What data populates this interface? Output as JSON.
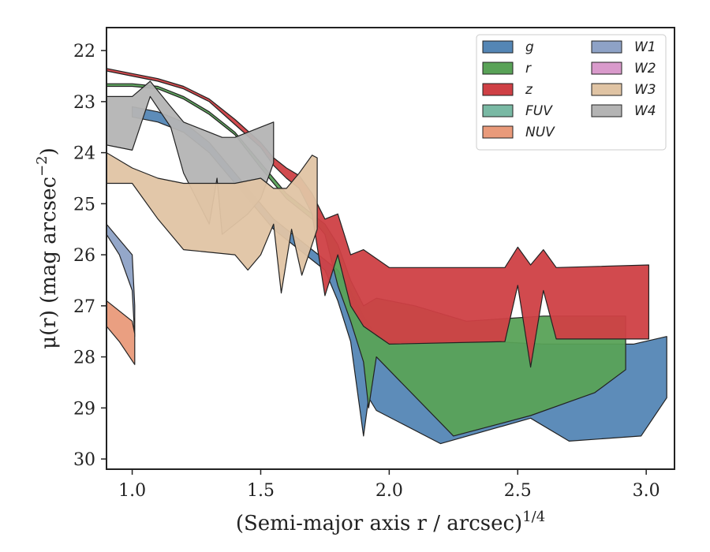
{
  "chart_data": {
    "type": "area",
    "xlabel": "(Semi-major axis r / arcsec)",
    "xlabel_superscript": "1/4",
    "ylabel": "μ(r) (mag arcsec",
    "ylabel_superscript": "−2",
    "ylabel_close": ")",
    "xlim": [
      0.9,
      3.11
    ],
    "ylim": [
      30.2,
      21.55
    ],
    "y_inverted": true,
    "xticks": [
      1.0,
      1.5,
      2.0,
      2.5,
      3.0
    ],
    "xtick_labels": [
      "1.0",
      "1.5",
      "2.0",
      "2.5",
      "3.0"
    ],
    "yticks": [
      22,
      23,
      24,
      25,
      26,
      27,
      28,
      29,
      30
    ],
    "ytick_labels": [
      "22",
      "23",
      "24",
      "25",
      "26",
      "27",
      "28",
      "29",
      "30"
    ],
    "grid": false,
    "legend_position": "top-right",
    "legend_columns": 2,
    "series": [
      {
        "name": "W2",
        "color": "#d99acb",
        "upper": [],
        "lower": []
      },
      {
        "name": "FUV",
        "color": "#79b9a4",
        "upper": [],
        "lower": []
      },
      {
        "name": "g",
        "color": "#5486b5",
        "upper": [
          [
            1.0,
            23.1
          ],
          [
            1.1,
            23.2
          ],
          [
            1.2,
            23.4
          ],
          [
            1.3,
            23.8
          ],
          [
            1.4,
            24.4
          ],
          [
            1.5,
            25.0
          ],
          [
            1.55,
            25.3
          ],
          [
            1.6,
            25.5
          ],
          [
            1.65,
            25.7
          ],
          [
            1.7,
            25.9
          ],
          [
            1.75,
            26.1
          ],
          [
            1.8,
            26.3
          ],
          [
            1.85,
            26.7
          ],
          [
            1.9,
            27.2
          ],
          [
            1.95,
            27.6
          ],
          [
            2.0,
            27.7
          ],
          [
            2.2,
            27.7
          ],
          [
            2.4,
            27.7
          ],
          [
            2.6,
            27.75
          ],
          [
            2.8,
            27.75
          ],
          [
            2.95,
            27.75
          ],
          [
            3.08,
            27.6
          ]
        ],
        "lower": [
          [
            1.0,
            23.3
          ],
          [
            1.1,
            23.4
          ],
          [
            1.2,
            23.6
          ],
          [
            1.3,
            24.0
          ],
          [
            1.4,
            24.6
          ],
          [
            1.5,
            25.2
          ],
          [
            1.55,
            25.5
          ],
          [
            1.6,
            25.7
          ],
          [
            1.65,
            25.9
          ],
          [
            1.7,
            26.1
          ],
          [
            1.75,
            26.3
          ],
          [
            1.8,
            26.9
          ],
          [
            1.85,
            27.7
          ],
          [
            1.9,
            29.55
          ],
          [
            1.92,
            28.8
          ],
          [
            1.95,
            29.05
          ],
          [
            2.2,
            29.7
          ],
          [
            2.55,
            29.2
          ],
          [
            2.7,
            29.65
          ],
          [
            2.98,
            29.55
          ],
          [
            3.08,
            28.8
          ]
        ]
      },
      {
        "name": "r",
        "color": "#59a257",
        "upper": [
          [
            0.9,
            22.65
          ],
          [
            1.0,
            22.65
          ],
          [
            1.1,
            22.7
          ],
          [
            1.2,
            22.9
          ],
          [
            1.3,
            23.2
          ],
          [
            1.4,
            23.6
          ],
          [
            1.5,
            24.2
          ],
          [
            1.55,
            24.5
          ],
          [
            1.6,
            24.8
          ],
          [
            1.65,
            25.0
          ],
          [
            1.7,
            25.2
          ],
          [
            1.75,
            25.4
          ],
          [
            1.8,
            25.8
          ],
          [
            1.85,
            26.5
          ],
          [
            1.9,
            27.0
          ],
          [
            1.95,
            26.85
          ],
          [
            2.1,
            27.0
          ],
          [
            2.3,
            27.3
          ],
          [
            2.6,
            27.2
          ],
          [
            2.8,
            27.2
          ],
          [
            2.92,
            27.2
          ]
        ],
        "lower": [
          [
            0.9,
            22.7
          ],
          [
            1.0,
            22.7
          ],
          [
            1.1,
            22.75
          ],
          [
            1.2,
            22.95
          ],
          [
            1.3,
            23.25
          ],
          [
            1.4,
            23.65
          ],
          [
            1.5,
            24.3
          ],
          [
            1.55,
            24.6
          ],
          [
            1.6,
            24.9
          ],
          [
            1.65,
            25.1
          ],
          [
            1.7,
            25.3
          ],
          [
            1.75,
            25.6
          ],
          [
            1.8,
            26.6
          ],
          [
            1.85,
            27.3
          ],
          [
            1.9,
            28.1
          ],
          [
            1.92,
            29.0
          ],
          [
            1.95,
            28.0
          ],
          [
            2.25,
            29.55
          ],
          [
            2.55,
            29.15
          ],
          [
            2.8,
            28.7
          ],
          [
            2.92,
            28.25
          ]
        ]
      },
      {
        "name": "z",
        "color": "#cf4045",
        "upper": [
          [
            0.9,
            22.35
          ],
          [
            1.0,
            22.45
          ],
          [
            1.1,
            22.55
          ],
          [
            1.2,
            22.7
          ],
          [
            1.3,
            22.95
          ],
          [
            1.4,
            23.35
          ],
          [
            1.5,
            23.8
          ],
          [
            1.55,
            24.1
          ],
          [
            1.6,
            24.3
          ],
          [
            1.65,
            24.45
          ],
          [
            1.7,
            24.8
          ],
          [
            1.75,
            25.3
          ],
          [
            1.8,
            25.2
          ],
          [
            1.85,
            26.0
          ],
          [
            1.9,
            25.9
          ],
          [
            2.0,
            26.25
          ],
          [
            2.45,
            26.25
          ],
          [
            2.5,
            25.85
          ],
          [
            2.55,
            26.2
          ],
          [
            2.6,
            25.9
          ],
          [
            2.65,
            26.25
          ],
          [
            3.01,
            26.2
          ]
        ],
        "lower": [
          [
            0.9,
            22.4
          ],
          [
            1.0,
            22.5
          ],
          [
            1.1,
            22.6
          ],
          [
            1.2,
            22.75
          ],
          [
            1.3,
            23.0
          ],
          [
            1.4,
            23.45
          ],
          [
            1.5,
            23.9
          ],
          [
            1.55,
            24.25
          ],
          [
            1.6,
            24.5
          ],
          [
            1.65,
            24.7
          ],
          [
            1.7,
            25.2
          ],
          [
            1.75,
            26.8
          ],
          [
            1.8,
            26.0
          ],
          [
            1.85,
            27.0
          ],
          [
            1.9,
            27.4
          ],
          [
            2.0,
            27.75
          ],
          [
            2.45,
            27.7
          ],
          [
            2.5,
            26.6
          ],
          [
            2.55,
            28.2
          ],
          [
            2.6,
            26.7
          ],
          [
            2.65,
            27.65
          ],
          [
            3.01,
            27.65
          ]
        ]
      },
      {
        "name": "W4",
        "color": "#b4b4b4",
        "upper": [
          [
            0.9,
            22.9
          ],
          [
            1.0,
            22.9
          ],
          [
            1.07,
            22.6
          ],
          [
            1.15,
            23.1
          ],
          [
            1.2,
            23.4
          ],
          [
            1.3,
            23.6
          ],
          [
            1.35,
            23.7
          ],
          [
            1.4,
            23.7
          ],
          [
            1.45,
            23.6
          ],
          [
            1.5,
            23.5
          ],
          [
            1.55,
            23.4
          ]
        ],
        "lower": [
          [
            0.9,
            23.85
          ],
          [
            1.0,
            23.95
          ],
          [
            1.07,
            22.9
          ],
          [
            1.15,
            23.5
          ],
          [
            1.2,
            24.4
          ],
          [
            1.3,
            25.4
          ],
          [
            1.33,
            24.5
          ],
          [
            1.35,
            25.6
          ],
          [
            1.45,
            25.2
          ],
          [
            1.5,
            24.9
          ],
          [
            1.55,
            24.2
          ]
        ]
      },
      {
        "name": "W3",
        "color": "#e0c4a4",
        "upper": [
          [
            0.9,
            24.0
          ],
          [
            1.0,
            24.3
          ],
          [
            1.1,
            24.5
          ],
          [
            1.2,
            24.6
          ],
          [
            1.3,
            24.6
          ],
          [
            1.4,
            24.6
          ],
          [
            1.5,
            24.5
          ],
          [
            1.55,
            24.7
          ],
          [
            1.6,
            24.7
          ],
          [
            1.65,
            24.4
          ],
          [
            1.7,
            24.05
          ],
          [
            1.72,
            24.1
          ]
        ],
        "lower": [
          [
            0.9,
            24.6
          ],
          [
            1.0,
            24.6
          ],
          [
            1.1,
            25.3
          ],
          [
            1.2,
            25.9
          ],
          [
            1.4,
            26.0
          ],
          [
            1.45,
            26.3
          ],
          [
            1.5,
            26.0
          ],
          [
            1.55,
            25.4
          ],
          [
            1.58,
            26.75
          ],
          [
            1.62,
            25.5
          ],
          [
            1.66,
            26.4
          ],
          [
            1.72,
            25.5
          ]
        ]
      },
      {
        "name": "W1",
        "color": "#8ea2c6",
        "upper": [
          [
            0.9,
            25.4
          ],
          [
            0.95,
            25.7
          ],
          [
            1.0,
            26.0
          ],
          [
            1.01,
            27.0
          ]
        ],
        "lower": [
          [
            0.9,
            25.6
          ],
          [
            0.95,
            26.0
          ],
          [
            1.0,
            26.7
          ],
          [
            1.01,
            27.6
          ]
        ]
      },
      {
        "name": "NUV",
        "color": "#e99a7a",
        "upper": [
          [
            0.9,
            26.9
          ],
          [
            1.0,
            27.3
          ],
          [
            1.01,
            27.55
          ]
        ],
        "lower": [
          [
            0.9,
            27.4
          ],
          [
            0.95,
            27.7
          ],
          [
            1.01,
            28.15
          ]
        ]
      }
    ],
    "legend_entries": [
      {
        "label": "g",
        "color": "#5486b5"
      },
      {
        "label": "r",
        "color": "#59a257"
      },
      {
        "label": "z",
        "color": "#cf4045"
      },
      {
        "label": "FUV",
        "color": "#79b9a4"
      },
      {
        "label": "NUV",
        "color": "#e99a7a"
      },
      {
        "label": "W1",
        "color": "#8ea2c6"
      },
      {
        "label": "W2",
        "color": "#d99acb"
      },
      {
        "label": "W3",
        "color": "#e0c4a4"
      },
      {
        "label": "W4",
        "color": "#b4b4b4"
      }
    ]
  }
}
